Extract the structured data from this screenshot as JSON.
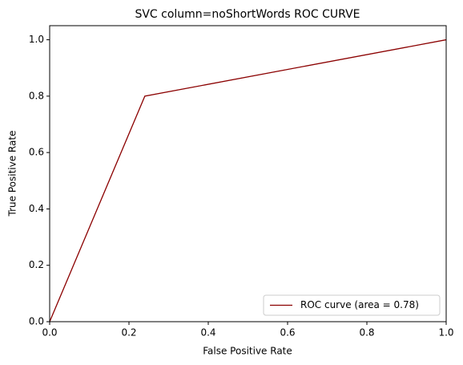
{
  "chart_data": {
    "type": "line",
    "title": "SVC column=noShortWords ROC CURVE",
    "xlabel": "False Positive Rate",
    "ylabel": "True Positive Rate",
    "x": [
      0,
      0.24,
      1
    ],
    "series": [
      {
        "name": "ROC curve (area = 0.78)",
        "color": "#8b0000",
        "values": [
          0,
          0.8,
          1
        ]
      }
    ],
    "xlim": [
      0,
      1
    ],
    "ylim": [
      0,
      1.05
    ],
    "xticks": [
      {
        "value": 0,
        "label": "0.0"
      },
      0.2,
      0.4,
      0.6,
      0.8,
      {
        "value": 1,
        "label": "1.0"
      }
    ],
    "yticks": [
      {
        "value": 0,
        "label": "0.0"
      },
      0.2,
      0.4,
      0.6,
      0.8,
      {
        "value": 1,
        "label": "1.0"
      }
    ],
    "grid": false,
    "legend": "lower right"
  }
}
